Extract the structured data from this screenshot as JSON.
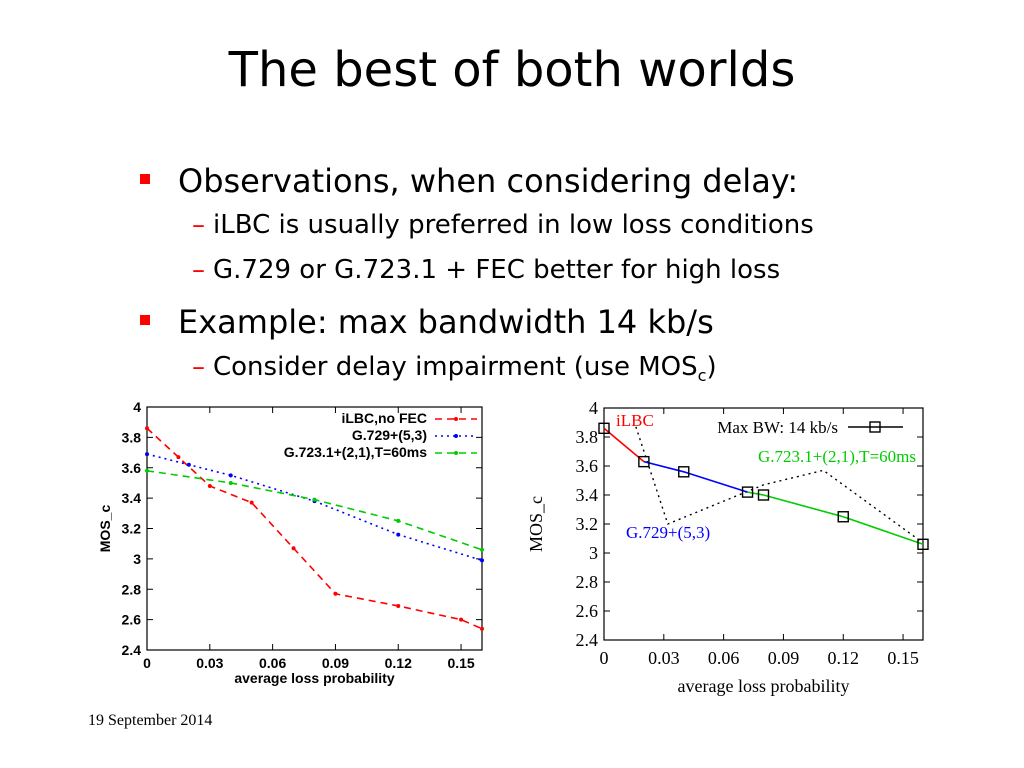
{
  "slide": {
    "title": "The best of both worlds",
    "bullets": [
      {
        "level": 1,
        "text": "Observations, when considering delay:"
      },
      {
        "level": 2,
        "text": "iLBC is usually preferred in low loss conditions"
      },
      {
        "level": 2,
        "text": "G.729 or G.723.1 + FEC better for high loss"
      },
      {
        "level": 1,
        "text": "Example: max bandwidth 14 kb/s"
      },
      {
        "level": 2,
        "text": "Consider delay impairment (use MOS",
        "sub": "c",
        "tail": ")"
      }
    ],
    "footer_date": "19 September 2014"
  },
  "colors": {
    "bullet_marker": "#ff0000",
    "ilbc": "#ff0000",
    "g729": "#0000ff",
    "g723": "#00cc00",
    "maxbw": "#000000"
  },
  "chart_data": [
    {
      "type": "line",
      "xlabel": "average loss probability",
      "ylabel": "MOS_c",
      "xlim": [
        0,
        0.16
      ],
      "ylim": [
        2.4,
        4.0
      ],
      "xticks": [
        "0",
        "0.03",
        "0.06",
        "0.09",
        "0.12",
        "0.15"
      ],
      "yticks": [
        "2.4",
        "2.6",
        "2.8",
        "3",
        "3.2",
        "3.4",
        "3.6",
        "3.8",
        "4"
      ],
      "legend_position": "top-right",
      "series": [
        {
          "name": "iLBC,no FEC",
          "color": "#ff0000",
          "style": "dashed",
          "x": [
            0,
            0.015,
            0.03,
            0.05,
            0.07,
            0.09,
            0.12,
            0.15,
            0.16
          ],
          "y": [
            3.86,
            3.67,
            3.48,
            3.37,
            3.07,
            2.77,
            2.69,
            2.6,
            2.54
          ]
        },
        {
          "name": "G.729+(5,3)",
          "color": "#0000ff",
          "style": "dotted",
          "x": [
            0,
            0.02,
            0.04,
            0.08,
            0.12,
            0.16
          ],
          "y": [
            3.69,
            3.62,
            3.55,
            3.38,
            3.16,
            2.99
          ]
        },
        {
          "name": "G.723.1+(2,1),T=60ms",
          "color": "#00cc00",
          "style": "dashed",
          "x": [
            0,
            0.04,
            0.08,
            0.12,
            0.16
          ],
          "y": [
            3.58,
            3.5,
            3.39,
            3.25,
            3.06
          ]
        }
      ]
    },
    {
      "type": "line",
      "xlabel": "average loss probability",
      "ylabel": "MOS_c",
      "xlim": [
        0,
        0.16
      ],
      "ylim": [
        2.4,
        4.0
      ],
      "xticks": [
        "0",
        "0.03",
        "0.06",
        "0.09",
        "0.12",
        "0.15"
      ],
      "yticks": [
        "2.4",
        "2.6",
        "2.8",
        "3",
        "3.2",
        "3.4",
        "3.6",
        "3.8",
        "4"
      ],
      "legend_position": "top-right",
      "series": [
        {
          "name": "Max BW: 14 kb/s",
          "color": "#000000",
          "style": "markers",
          "x": [
            0,
            0.02,
            0.04,
            0.072,
            0.08,
            0.12,
            0.16
          ],
          "y": [
            3.86,
            3.63,
            3.56,
            3.42,
            3.4,
            3.25,
            3.06
          ]
        }
      ],
      "segments": [
        {
          "label": "iLBC",
          "color": "#ff0000",
          "x": [
            0,
            0.02
          ],
          "y": [
            3.86,
            3.63
          ]
        },
        {
          "label": "G.729+(5,3)",
          "color": "#0000ff",
          "x": [
            0.02,
            0.04,
            0.072
          ],
          "y": [
            3.63,
            3.56,
            3.42
          ]
        },
        {
          "label": "G.723.1+(2,1),T=60ms",
          "color": "#00cc00",
          "x": [
            0.072,
            0.08,
            0.12,
            0.16
          ],
          "y": [
            3.42,
            3.4,
            3.25,
            3.06
          ]
        }
      ],
      "dotted_trace": {
        "color": "#000000",
        "x": [
          0.016,
          0.032,
          0.08,
          0.11,
          0.16
        ],
        "y": [
          3.87,
          3.2,
          3.47,
          3.57,
          3.07
        ]
      }
    }
  ]
}
